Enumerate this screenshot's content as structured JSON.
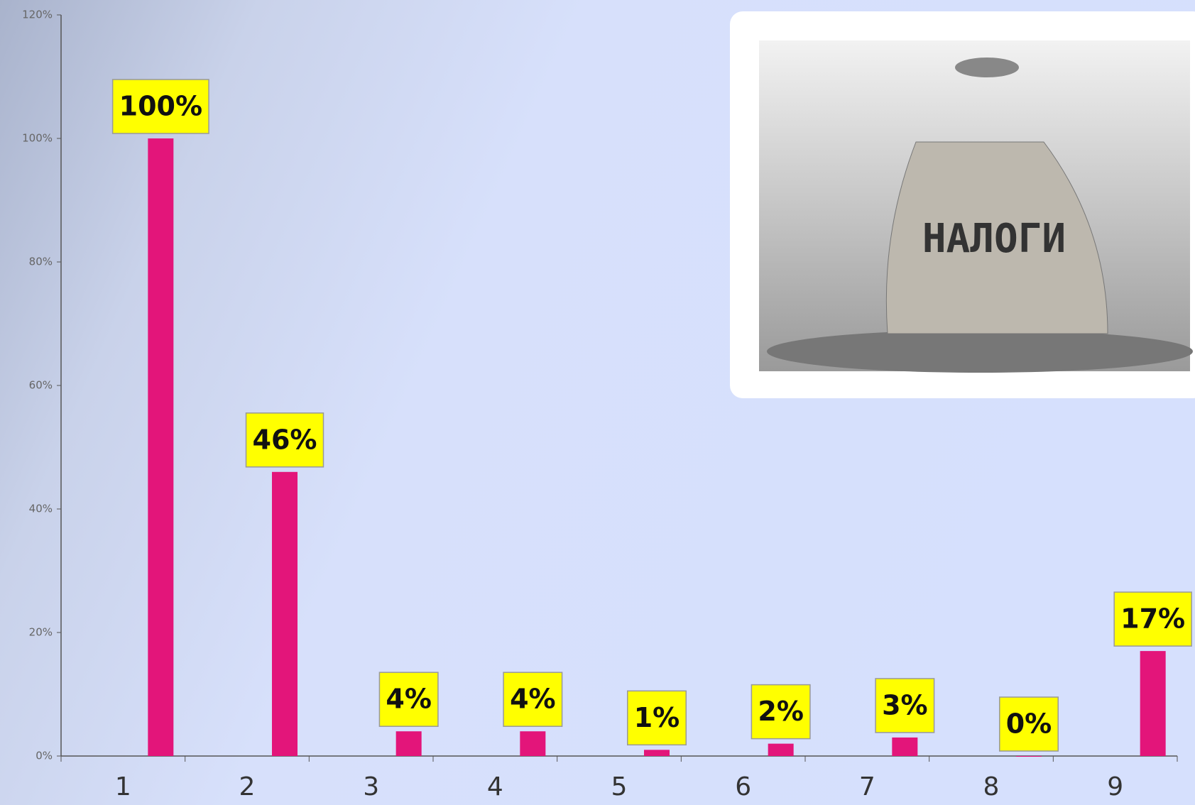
{
  "chart_data": {
    "type": "bar",
    "categories": [
      "1",
      "2",
      "3",
      "4",
      "5",
      "6",
      "7",
      "8",
      "9"
    ],
    "values": [
      100,
      46,
      4,
      4,
      1,
      2,
      3,
      0,
      17
    ],
    "value_labels": [
      "100%",
      "46%",
      "4%",
      "4%",
      "1%",
      "2%",
      "3%",
      "0%",
      "17%"
    ],
    "color": "#e3157a",
    "ylim": [
      0,
      120
    ],
    "yticks": [
      {
        "value": 0,
        "label": "0%"
      },
      {
        "value": 20,
        "label": "20%"
      },
      {
        "value": 40,
        "label": "40%"
      },
      {
        "value": 60,
        "label": "60%"
      },
      {
        "value": 80,
        "label": "80%"
      },
      {
        "value": 100,
        "label": "100%"
      },
      {
        "value": 120,
        "label": "120%"
      }
    ],
    "grid": false
  },
  "photo": {
    "text": "НАЛОГИ"
  }
}
